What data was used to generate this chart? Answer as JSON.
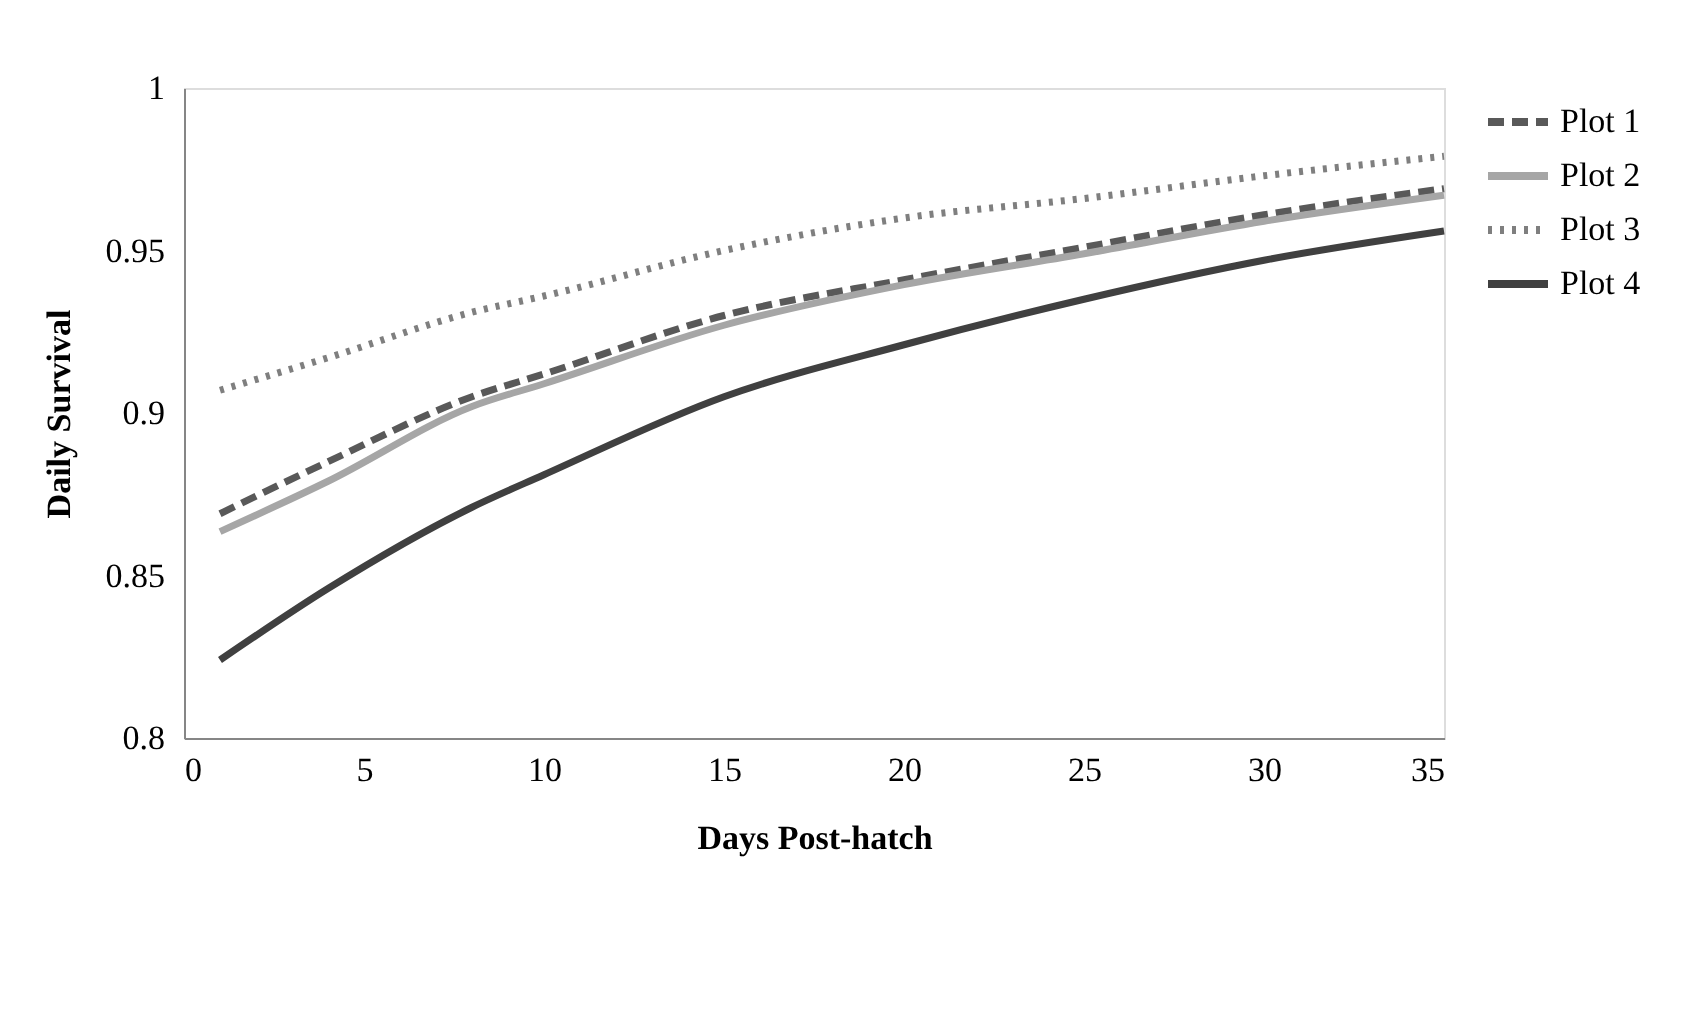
{
  "chart_data": {
    "type": "line",
    "xlabel": "Days Post-hatch",
    "ylabel": "Daily Survival",
    "x": [
      1,
      4,
      8,
      10,
      15,
      20,
      25,
      30,
      35
    ],
    "series": [
      {
        "name": "Plot 1",
        "color": "#595959",
        "line_style": "dashed",
        "values": [
          0.869,
          0.885,
          0.905,
          0.912,
          0.93,
          0.941,
          0.951,
          0.961,
          0.969
        ]
      },
      {
        "name": "Plot 2",
        "color": "#a6a6a6",
        "line_style": "solid",
        "values": [
          0.8635,
          0.879,
          0.902,
          0.909,
          0.927,
          0.9395,
          0.949,
          0.959,
          0.967
        ]
      },
      {
        "name": "Plot 3",
        "color": "#7f7f7f",
        "line_style": "dotted",
        "values": [
          0.907,
          0.917,
          0.931,
          0.936,
          0.95,
          0.96,
          0.966,
          0.973,
          0.979
        ]
      },
      {
        "name": "Plot 4",
        "color": "#404040",
        "line_style": "solid",
        "values": [
          0.824,
          0.846,
          0.871,
          0.881,
          0.905,
          0.921,
          0.935,
          0.947,
          0.956
        ]
      }
    ],
    "xlim": [
      0,
      35
    ],
    "xticks": [
      0,
      5,
      10,
      15,
      20,
      25,
      30,
      35
    ],
    "ylim": [
      0.8,
      1
    ],
    "yticks": [
      0.8,
      0.85,
      0.9,
      0.95,
      1
    ],
    "grid": false,
    "legend": "right",
    "marker": "none"
  }
}
